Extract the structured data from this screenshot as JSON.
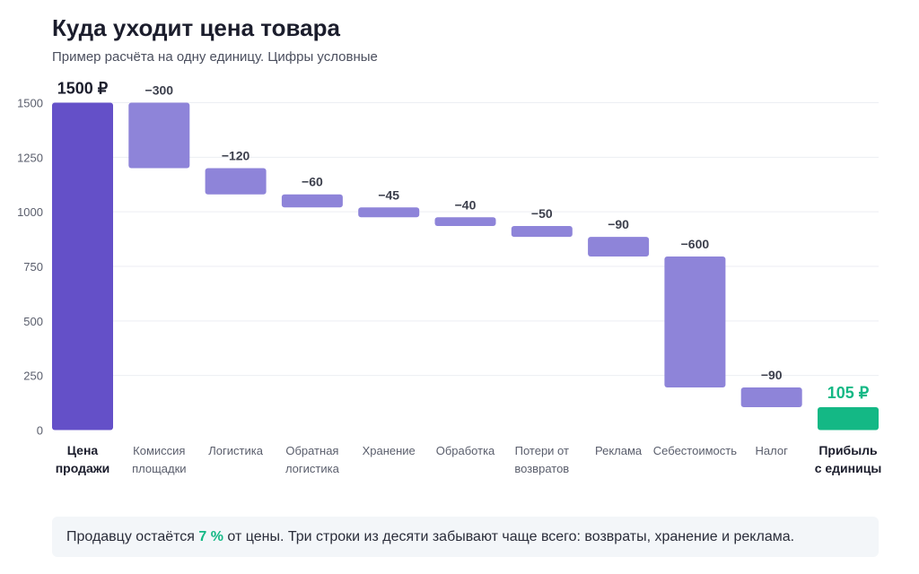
{
  "header": {
    "title": "Куда уходит цена товара",
    "subtitle": "Пример расчёта на одну единицу. Цифры условные"
  },
  "colors": {
    "total": "#6450c8",
    "decrease": "#8e84d9",
    "result": "#14b885",
    "grid": "#eceef3",
    "text_dark": "#1b1d2c",
    "text_muted": "#5a5e6c",
    "label_dark": "#3c3f4c"
  },
  "chart_data": {
    "type": "bar",
    "subtype": "waterfall",
    "ylim": [
      0,
      1500
    ],
    "y_ticks": [
      "0",
      "250",
      "500",
      "750",
      "1000",
      "1250",
      "1500"
    ],
    "grid": true,
    "categories": [
      {
        "name": "Цена продажи",
        "lines": [
          "Цена",
          "продажи"
        ],
        "kind": "total",
        "value": 1500,
        "label": "1500 ₽"
      },
      {
        "name": "Комиссия площадки",
        "lines": [
          "Комиссия",
          "площадки"
        ],
        "kind": "decrease",
        "value": -300,
        "label": "−300"
      },
      {
        "name": "Логистика",
        "lines": [
          "Логистика"
        ],
        "kind": "decrease",
        "value": -120,
        "label": "−120"
      },
      {
        "name": "Обратная логистика",
        "lines": [
          "Обратная",
          "логистика"
        ],
        "kind": "decrease",
        "value": -60,
        "label": "−60"
      },
      {
        "name": "Хранение",
        "lines": [
          "Хранение"
        ],
        "kind": "decrease",
        "value": -45,
        "label": "−45"
      },
      {
        "name": "Обработка",
        "lines": [
          "Обработка"
        ],
        "kind": "decrease",
        "value": -40,
        "label": "−40"
      },
      {
        "name": "Потери от возвратов",
        "lines": [
          "Потери от",
          "возвратов"
        ],
        "kind": "decrease",
        "value": -50,
        "label": "−50"
      },
      {
        "name": "Реклама",
        "lines": [
          "Реклама"
        ],
        "kind": "decrease",
        "value": -90,
        "label": "−90"
      },
      {
        "name": "Себестоимость",
        "lines": [
          "Себестоимость"
        ],
        "kind": "decrease",
        "value": -600,
        "label": "−600"
      },
      {
        "name": "Налог",
        "lines": [
          "Налог"
        ],
        "kind": "decrease",
        "value": -90,
        "label": "−90"
      },
      {
        "name": "Прибыль с единицы",
        "lines": [
          "Прибыль",
          "с единицы"
        ],
        "kind": "result",
        "value": 105,
        "label": "105 ₽"
      }
    ]
  },
  "note": {
    "before": "Продавцу остаётся ",
    "highlight": "7 %",
    "after": " от цены. Три строки из десяти забывают чаще всего: возвраты, хранение и реклама."
  }
}
